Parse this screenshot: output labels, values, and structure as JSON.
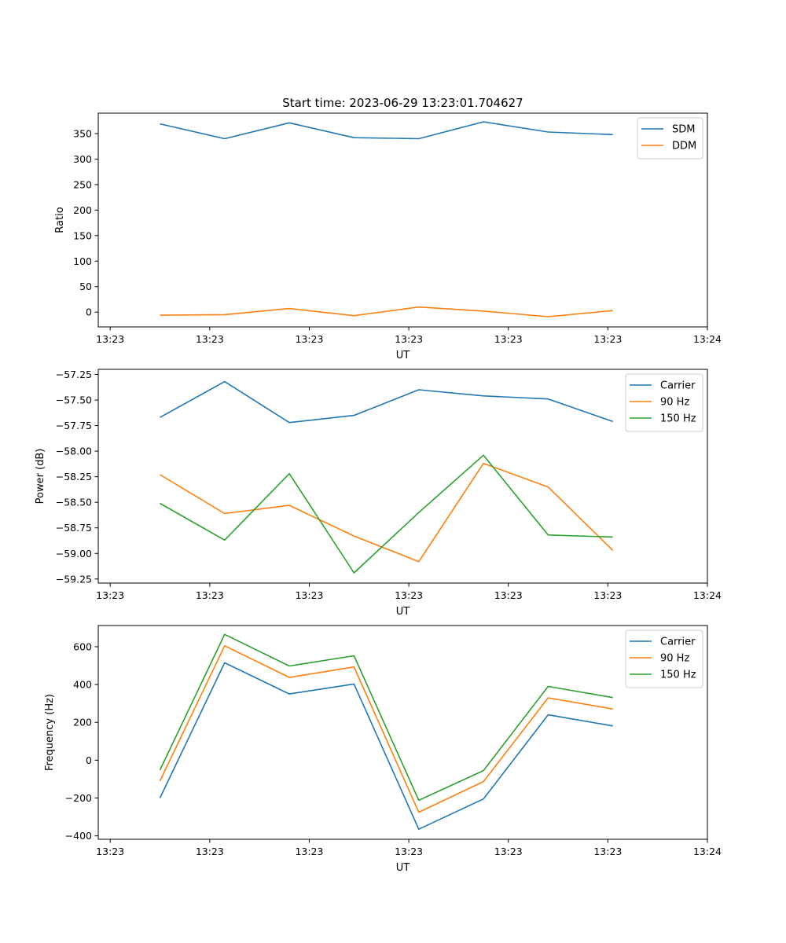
{
  "figure": {
    "title": "Start time: 2023-06-29 13:23:01.704627"
  },
  "colors": {
    "c0": "#1f77b4",
    "c1": "#ff7f0e",
    "c2": "#2ca02c",
    "axis": "#000000"
  },
  "chart_data": [
    {
      "type": "line",
      "ylabel": "Ratio",
      "xlabel": "UT",
      "x_tick_labels": [
        "13:23",
        "13:23",
        "13:23",
        "13:23",
        "13:23",
        "13:23",
        "13:24"
      ],
      "x_tick_positions": [
        0,
        1,
        2,
        3,
        4,
        5,
        6
      ],
      "x": [
        0.5,
        1.15,
        1.8,
        2.45,
        3.1,
        3.75,
        4.4,
        5.05
      ],
      "xlim": [
        -0.12,
        6.0
      ],
      "y_ticks": [
        0,
        50,
        100,
        150,
        200,
        250,
        300,
        350
      ],
      "y_tick_labels": [
        "0",
        "50",
        "100",
        "150",
        "200",
        "250",
        "300",
        "350"
      ],
      "ylim": [
        -29,
        390
      ],
      "legend_position": "top-right",
      "grid": false,
      "series": [
        {
          "name": "SDM",
          "color": "#1f77b4",
          "values": [
            369,
            340,
            371,
            342,
            340,
            373,
            353,
            348
          ]
        },
        {
          "name": "DDM",
          "color": "#ff7f0e",
          "values": [
            -6,
            -5,
            7,
            -7,
            10,
            2,
            -9,
            3
          ]
        }
      ]
    },
    {
      "type": "line",
      "ylabel": "Power (dB)",
      "xlabel": "UT",
      "x_tick_labels": [
        "13:23",
        "13:23",
        "13:23",
        "13:23",
        "13:23",
        "13:23",
        "13:24"
      ],
      "x_tick_positions": [
        0,
        1,
        2,
        3,
        4,
        5,
        6
      ],
      "x": [
        0.5,
        1.15,
        1.8,
        2.45,
        3.1,
        3.75,
        4.4,
        5.05
      ],
      "xlim": [
        -0.12,
        6.0
      ],
      "y_ticks": [
        -59.25,
        -59.0,
        -58.75,
        -58.5,
        -58.25,
        -58.0,
        -57.75,
        -57.5,
        -57.25
      ],
      "y_tick_labels": [
        "−59.25",
        "−59.00",
        "−58.75",
        "−58.50",
        "−58.25",
        "−58.00",
        "−57.75",
        "−57.50",
        "−57.25"
      ],
      "ylim": [
        -59.29,
        -57.2
      ],
      "legend_position": "top-right",
      "grid": false,
      "series": [
        {
          "name": "Carrier",
          "color": "#1f77b4",
          "values": [
            -57.67,
            -57.32,
            -57.72,
            -57.65,
            -57.4,
            -57.46,
            -57.49,
            -57.71
          ]
        },
        {
          "name": "90 Hz",
          "color": "#ff7f0e",
          "values": [
            -58.23,
            -58.61,
            -58.53,
            -58.83,
            -59.08,
            -58.12,
            -58.35,
            -58.97
          ]
        },
        {
          "name": "150 Hz",
          "color": "#2ca02c",
          "values": [
            -58.51,
            -58.87,
            -58.22,
            -59.19,
            -58.6,
            -58.04,
            -58.82,
            -58.84
          ]
        }
      ]
    },
    {
      "type": "line",
      "ylabel": "Frequency (Hz)",
      "xlabel": "UT",
      "x_tick_labels": [
        "13:23",
        "13:23",
        "13:23",
        "13:23",
        "13:23",
        "13:23",
        "13:24"
      ],
      "x_tick_positions": [
        0,
        1,
        2,
        3,
        4,
        5,
        6
      ],
      "x": [
        0.5,
        1.15,
        1.8,
        2.45,
        3.1,
        3.75,
        4.4,
        5.05
      ],
      "xlim": [
        -0.12,
        6.0
      ],
      "y_ticks": [
        -400,
        -200,
        0,
        200,
        400,
        600
      ],
      "y_tick_labels": [
        "−400",
        "−200",
        "0",
        "200",
        "400",
        "600"
      ],
      "ylim": [
        -418,
        712
      ],
      "legend_position": "top-right",
      "grid": false,
      "series": [
        {
          "name": "Carrier",
          "color": "#1f77b4",
          "values": [
            -200,
            515,
            350,
            403,
            -365,
            -205,
            240,
            181
          ]
        },
        {
          "name": "90 Hz",
          "color": "#ff7f0e",
          "values": [
            -110,
            605,
            438,
            493,
            -275,
            -113,
            330,
            271
          ]
        },
        {
          "name": "150 Hz",
          "color": "#2ca02c",
          "values": [
            -52,
            665,
            498,
            552,
            -212,
            -55,
            390,
            331
          ]
        }
      ]
    }
  ]
}
